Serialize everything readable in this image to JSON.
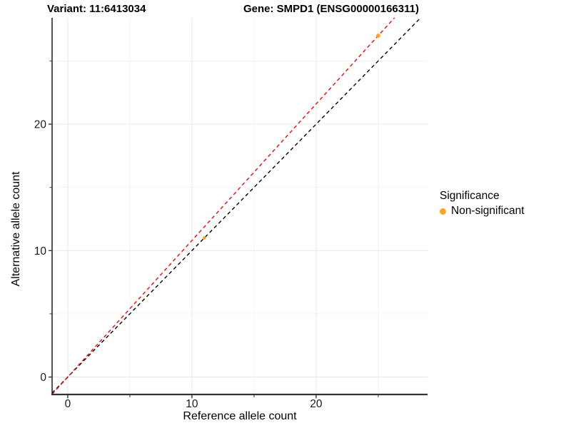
{
  "titles": {
    "variant": "Variant: 11:6413034",
    "gene": "Gene: SMPD1 (ENSG00000166311)"
  },
  "legend": {
    "title": "Significance",
    "items": [
      {
        "label": "Non-significant",
        "color": "#FFA320"
      }
    ]
  },
  "chart_data": {
    "type": "scatter",
    "title": "",
    "xlabel": "Reference allele count",
    "ylabel": "Alternative allele count",
    "x_ticks": [
      0,
      10,
      20
    ],
    "x_minor_ticks": [
      5,
      15,
      25
    ],
    "y_ticks": [
      0,
      10,
      20
    ],
    "y_minor_ticks": [
      5,
      15,
      25
    ],
    "xlim": [
      -1.26,
      28.97
    ],
    "ylim": [
      -1.38,
      28.41
    ],
    "grid": true,
    "legend_position": "right",
    "points": [
      {
        "x": 11,
        "y": 11,
        "r": 2.3,
        "significance": "Non-significant",
        "color": "#FFA320"
      },
      {
        "x": 25,
        "y": 27,
        "r": 2.9,
        "significance": "Non-significant",
        "color": "#FFA320"
      }
    ],
    "lines": [
      {
        "name": "identity-line",
        "slope": 1.0,
        "intercept": 0,
        "color": "#000000",
        "dashed": true
      },
      {
        "name": "allelic-ratio-line",
        "slope": 1.08,
        "intercept": 0,
        "color": "#FF0000",
        "dashed": true
      }
    ],
    "style": {
      "grid_major_color": "#e8e8e8",
      "grid_minor_color": "#f3f3f3",
      "axis_line_color": "#333333",
      "tick_color": "#333333",
      "tick_label_color": "#1a1a1a"
    }
  }
}
